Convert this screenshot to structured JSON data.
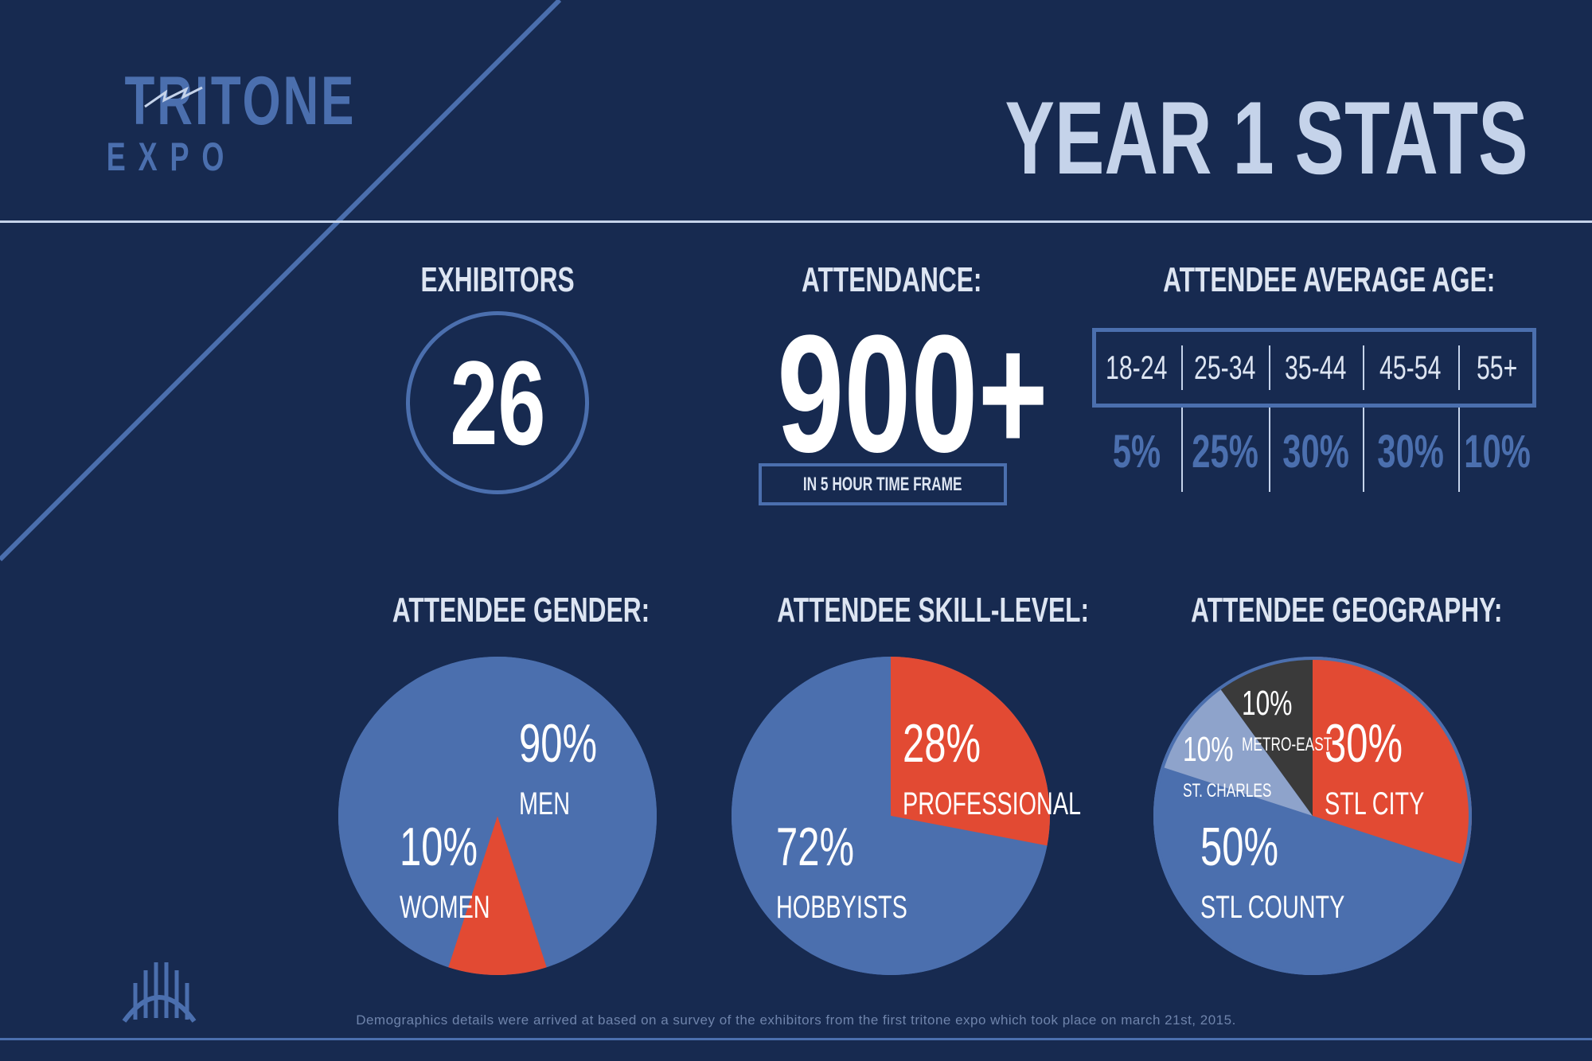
{
  "logo": {
    "word": "TRITONE",
    "sub": "EXPO",
    "icon": "bridge-arch-icon",
    "accent": "#4b6fae"
  },
  "page_title": "YEAR 1 STATS",
  "exhibitors": {
    "label": "EXHIBITORS",
    "value": "26"
  },
  "attendance": {
    "label": "ATTENDANCE:",
    "value": "900+",
    "note": "IN 5 HOUR TIME FRAME"
  },
  "age": {
    "label": "ATTENDEE AVERAGE AGE:",
    "ranges": [
      "18-24",
      "25-34",
      "35-44",
      "45-54",
      "55+"
    ],
    "values": [
      "5%",
      "25%",
      "30%",
      "30%",
      "10%"
    ]
  },
  "colors": {
    "background": "#172a50",
    "primary_blue": "#4b6fae",
    "accent_red": "#e24a33",
    "light_blue": "#8ea3cb",
    "dark_gray": "#3a3a3a",
    "title": "#c5d3ea"
  },
  "chart_data": [
    {
      "type": "pie",
      "title": "ATTENDEE GENDER:",
      "series": [
        {
          "name": "MEN",
          "value": 90,
          "label": "90%",
          "color": "#4b6fae"
        },
        {
          "name": "WOMEN",
          "value": 10,
          "label": "10%",
          "color": "#e24a33"
        }
      ]
    },
    {
      "type": "pie",
      "title": "ATTENDEE SKILL-LEVEL:",
      "series": [
        {
          "name": "PROFESSIONAL",
          "value": 28,
          "label": "28%",
          "color": "#e24a33"
        },
        {
          "name": "HOBBYISTS",
          "value": 72,
          "label": "72%",
          "color": "#4b6fae"
        }
      ]
    },
    {
      "type": "pie",
      "title": "ATTENDEE GEOGRAPHY:",
      "series": [
        {
          "name": "STL CITY",
          "value": 30,
          "label": "30%",
          "color": "#e24a33"
        },
        {
          "name": "STL COUNTY",
          "value": 50,
          "label": "50%",
          "color": "#4b6fae"
        },
        {
          "name": "ST. CHARLES",
          "value": 10,
          "label": "10%",
          "color": "#8ea3cb"
        },
        {
          "name": "METRO-EAST",
          "value": 10,
          "label": "10%",
          "color": "#3a3a3a"
        }
      ]
    }
  ],
  "footer": "Demographics details were arrived at based on a survey of the exhibitors from the first tritone expo which took place on march 21st, 2015."
}
